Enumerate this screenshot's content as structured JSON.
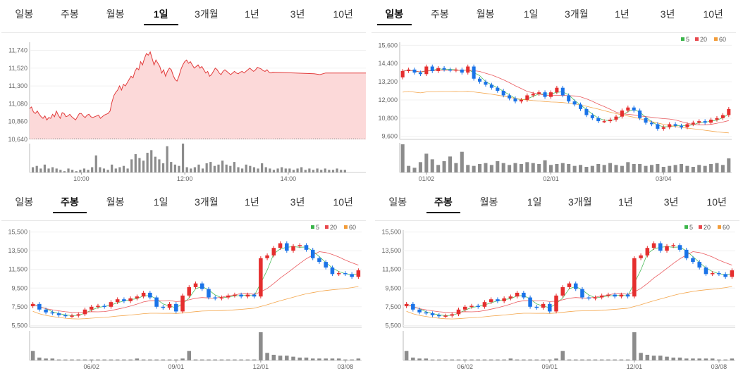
{
  "tabs_labels": [
    "일봉",
    "주봉",
    "월봉",
    "1일",
    "3개월",
    "1년",
    "3년",
    "10년"
  ],
  "legend_labels": [
    "5",
    "20",
    "60"
  ],
  "colors": {
    "up": "#e52e2e",
    "down": "#1a73e8",
    "ma5": "#3bb54a",
    "ma20": "#e8484d",
    "ma60": "#f39c38",
    "area_line": "#e23b3b",
    "area_fill": "#fcd9d9",
    "volume": "#8c8c8c"
  },
  "panels": [
    {
      "id": "intraday",
      "active_tab": "1일",
      "chart_data": {
        "type": "area",
        "ylim": [
          10640,
          11840
        ],
        "yticks": [
          "11,740",
          "11,520",
          "11,300",
          "11,080",
          "10,860",
          "10,640"
        ],
        "ytick_values": [
          11740,
          11520,
          11300,
          11080,
          10860,
          10640
        ],
        "xticks": [
          "10:00",
          "12:00",
          "14:00"
        ],
        "xtick_positions_minutes": [
          60,
          180,
          300
        ],
        "x_range_minutes": [
          0,
          390
        ],
        "prices": [
          11020,
          11040,
          10980,
          10960,
          10990,
          10950,
          10920,
          10900,
          10930,
          10880,
          10910,
          10900,
          10950,
          10920,
          10990,
          10940,
          10900,
          10970,
          10960,
          10920,
          10930,
          10950,
          10920,
          10900,
          10880,
          10920,
          10960,
          10960,
          10930,
          10910,
          10940,
          10950,
          10920,
          10910,
          10920,
          10930,
          10940,
          10900,
          10920,
          10940,
          10950,
          10960,
          10990,
          11100,
          11180,
          11220,
          11250,
          11300,
          11250,
          11320,
          11300,
          11340,
          11380,
          11420,
          11400,
          11480,
          11520,
          11500,
          11600,
          11560,
          11640,
          11700,
          11680,
          11720,
          11640,
          11560,
          11620,
          11580,
          11540,
          11460,
          11500,
          11420,
          11480,
          11520,
          11500,
          11430,
          11380,
          11360,
          11420,
          11500,
          11560,
          11600,
          11620,
          11580,
          11600,
          11560,
          11520,
          11540,
          11560,
          11520,
          11540,
          11500,
          11460,
          11480,
          11420,
          11440,
          11480,
          11520,
          11500,
          11460,
          11440,
          11480,
          11500,
          11480,
          11460,
          11440,
          11460,
          11480,
          11460,
          11450,
          11470,
          11480,
          11460,
          11480,
          11500,
          11520,
          11500,
          11480,
          11500,
          11530,
          11520,
          11510,
          11490,
          11480,
          11500,
          11470,
          11460,
          11470,
          11450,
          11440,
          11460,
          11460,
          11460,
          11460,
          11460,
          11460,
          11460,
          11460
        ],
        "volumes": [
          4,
          5,
          3,
          6,
          3,
          4,
          3,
          2,
          1,
          3,
          2,
          1,
          2,
          3,
          2,
          4,
          13,
          4,
          3,
          2,
          6,
          3,
          4,
          5,
          3,
          10,
          14,
          11,
          9,
          15,
          17,
          12,
          10,
          7,
          20,
          8,
          6,
          5,
          22,
          4,
          3,
          4,
          6,
          3,
          7,
          8,
          5,
          6,
          9,
          6,
          5,
          8,
          4,
          3,
          6,
          5,
          4,
          3,
          7,
          4,
          3,
          2,
          3,
          4,
          3,
          3,
          2,
          3,
          4,
          2,
          3,
          2,
          3,
          2,
          3,
          2,
          2,
          3,
          2,
          2
        ]
      }
    },
    {
      "id": "daily",
      "active_tab": "일봉",
      "legend": true,
      "chart_data": {
        "type": "candlestick",
        "ylim": [
          9400,
          15800
        ],
        "yticks": [
          "15,600",
          "14,400",
          "13,200",
          "12,000",
          "10,800",
          "9,600"
        ],
        "ytick_values": [
          15600,
          14400,
          13200,
          12000,
          10800,
          9600
        ],
        "xticks": [
          {
            "label": "01/02",
            "index": 4
          },
          {
            "label": "02/01",
            "index": 25
          },
          {
            "label": "03/04",
            "index": 44
          }
        ],
        "closes": [
          13900,
          14000,
          13800,
          13700,
          14200,
          13900,
          14100,
          14000,
          13950,
          14000,
          13800,
          14200,
          13400,
          13200,
          13000,
          12800,
          12600,
          12300,
          12100,
          11900,
          12000,
          12300,
          12400,
          12500,
          12200,
          12500,
          12800,
          12300,
          11900,
          11700,
          11400,
          11000,
          10800,
          10600,
          10600,
          10700,
          10900,
          11300,
          11500,
          11300,
          10800,
          10500,
          10400,
          10100,
          10200,
          10400,
          10300,
          10200,
          10400,
          10500,
          10600,
          10500,
          10700,
          10800,
          11000,
          11400
        ],
        "volumes": [
          30,
          7,
          5,
          11,
          20,
          14,
          8,
          12,
          17,
          10,
          22,
          8,
          7,
          9,
          10,
          8,
          12,
          10,
          8,
          10,
          9,
          11,
          10,
          9,
          13,
          8,
          9,
          10,
          9,
          7,
          8,
          6,
          7,
          9,
          8,
          10,
          8,
          7,
          11,
          9,
          9,
          7,
          8,
          9,
          6,
          7,
          8,
          9,
          7,
          6,
          8,
          7,
          9,
          10,
          8,
          15
        ]
      }
    },
    {
      "id": "weekly-a",
      "active_tab": "주봉",
      "legend": true,
      "chart_data": {
        "type": "candlestick",
        "ylim": [
          5300,
          15700
        ],
        "yticks": [
          "15,500",
          "13,500",
          "11,500",
          "9,500",
          "7,500",
          "5,500"
        ],
        "ytick_values": [
          15500,
          13500,
          11500,
          9500,
          7500,
          5500
        ],
        "xticks": [
          {
            "label": "06/02",
            "index": 9
          },
          {
            "label": "09/01",
            "index": 22
          },
          {
            "label": "12/01",
            "index": 35
          },
          {
            "label": "03/08",
            "index": 48
          }
        ],
        "closes": [
          7800,
          7200,
          6900,
          6800,
          6600,
          6500,
          6550,
          6700,
          7200,
          7500,
          7600,
          7500,
          8000,
          8300,
          8100,
          8400,
          8600,
          9000,
          8500,
          7500,
          7400,
          7800,
          7000,
          8700,
          9600,
          10000,
          9400,
          8500,
          8400,
          8500,
          8700,
          8800,
          8600,
          8800,
          8600,
          12700,
          13000,
          13800,
          14300,
          13500,
          14000,
          14100,
          13600,
          12700,
          12300,
          11700,
          11000,
          11100,
          11000,
          10700,
          11400
        ],
        "volumes": [
          10,
          3,
          2,
          2,
          1,
          1,
          1,
          1,
          1,
          1,
          1,
          1,
          1,
          1,
          1,
          1,
          2,
          1,
          1,
          1,
          1,
          1,
          1,
          2,
          10,
          1,
          1,
          1,
          1,
          1,
          1,
          1,
          1,
          1,
          1,
          30,
          8,
          6,
          5,
          5,
          4,
          3,
          3,
          2,
          2,
          2,
          2,
          2,
          1,
          1,
          2
        ]
      }
    },
    {
      "id": "weekly-b",
      "active_tab": "주봉",
      "legend": true,
      "chart_data": {
        "type": "candlestick",
        "ylim": [
          5300,
          15700
        ],
        "yticks": [
          "15,500",
          "13,500",
          "11,500",
          "9,500",
          "7,500",
          "5,500"
        ],
        "ytick_values": [
          15500,
          13500,
          11500,
          9500,
          7500,
          5500
        ],
        "xticks": [
          {
            "label": "06/02",
            "index": 9
          },
          {
            "label": "09/01",
            "index": 22
          },
          {
            "label": "12/01",
            "index": 35
          },
          {
            "label": "03/08",
            "index": 48
          }
        ],
        "closes": [
          7800,
          7200,
          6900,
          6800,
          6600,
          6500,
          6550,
          6700,
          7200,
          7500,
          7600,
          7500,
          8000,
          8300,
          8100,
          8400,
          8600,
          9000,
          8500,
          7500,
          7400,
          7800,
          7000,
          8700,
          9600,
          10000,
          9400,
          8500,
          8400,
          8500,
          8700,
          8800,
          8600,
          8800,
          8600,
          12700,
          13000,
          13800,
          14300,
          13500,
          14000,
          14100,
          13600,
          12700,
          12300,
          11700,
          11000,
          11100,
          11000,
          10700,
          11400
        ],
        "volumes": [
          10,
          3,
          2,
          2,
          1,
          1,
          1,
          1,
          1,
          1,
          1,
          1,
          1,
          1,
          1,
          1,
          2,
          1,
          1,
          1,
          1,
          1,
          1,
          2,
          10,
          1,
          1,
          1,
          1,
          1,
          1,
          1,
          1,
          1,
          1,
          30,
          8,
          6,
          5,
          5,
          4,
          3,
          3,
          2,
          2,
          2,
          2,
          2,
          1,
          1,
          2
        ]
      }
    }
  ]
}
